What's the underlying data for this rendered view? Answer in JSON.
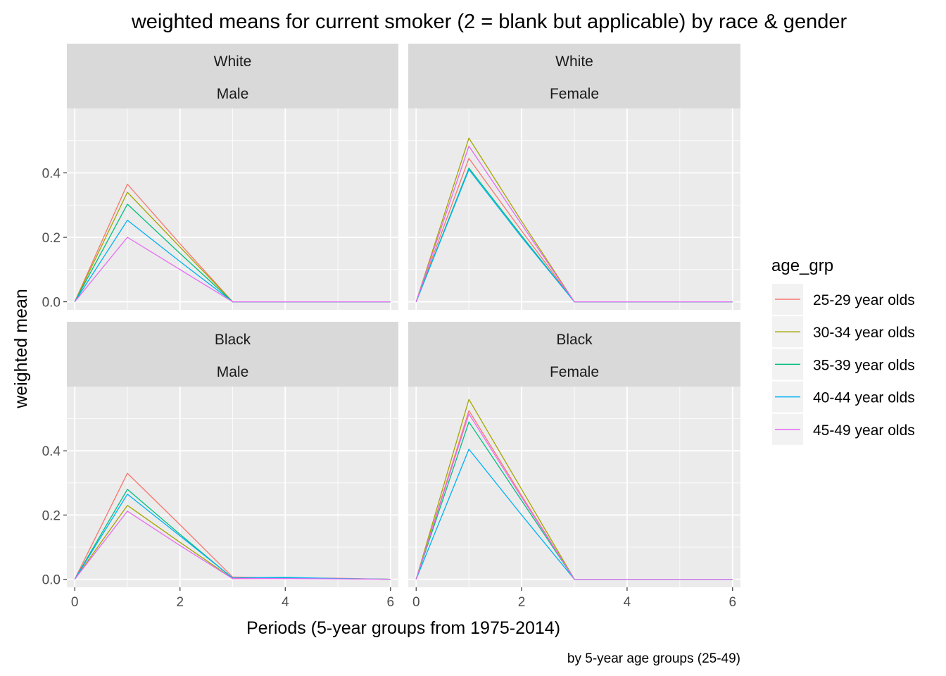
{
  "chart_data": {
    "type": "line",
    "title": "weighted means for current smoker (2 = blank but applicable) by race & gender",
    "xlabel": "Periods (5-year groups from 1975-2014)",
    "ylabel": "weighted mean",
    "caption": "by 5-year age groups (25-49)",
    "xlim": [
      -0.15,
      6.15
    ],
    "ylim": [
      -0.025,
      0.6
    ],
    "xticks": [
      0,
      2,
      4,
      6
    ],
    "yticks": [
      0.0,
      0.2,
      0.4
    ],
    "ytick_labels": [
      "0.0",
      "0.2",
      "0.4"
    ],
    "grid": true,
    "x": [
      0,
      1,
      2,
      3,
      4,
      5,
      6
    ],
    "legend": {
      "title": "age_grp",
      "position": "right"
    },
    "series_meta": [
      {
        "name": "25-29 year olds",
        "color": "#F8766D"
      },
      {
        "name": "30-34 year olds",
        "color": "#A3A500"
      },
      {
        "name": "35-39 year olds",
        "color": "#00BF7D"
      },
      {
        "name": "40-44 year olds",
        "color": "#00B0F6"
      },
      {
        "name": "45-49 year olds",
        "color": "#E76BF3"
      }
    ],
    "panels": [
      {
        "strip": [
          "White",
          "Male"
        ],
        "series": [
          {
            "name": "25-29 year olds",
            "values": [
              0,
              0.365,
              0.18,
              0,
              0,
              0,
              0
            ]
          },
          {
            "name": "30-34 year olds",
            "values": [
              0,
              0.34,
              0.17,
              0,
              0,
              0,
              0
            ]
          },
          {
            "name": "35-39 year olds",
            "values": [
              0,
              0.303,
              0.15,
              0,
              0,
              0,
              0
            ]
          },
          {
            "name": "40-44 year olds",
            "values": [
              0,
              0.253,
              0.125,
              0,
              0,
              0,
              0
            ]
          },
          {
            "name": "45-49 year olds",
            "values": [
              0,
              0.2,
              0.1,
              0,
              0,
              0,
              0
            ]
          }
        ]
      },
      {
        "strip": [
          "White",
          "Female"
        ],
        "series": [
          {
            "name": "25-29 year olds",
            "values": [
              0,
              0.445,
              0.22,
              0,
              0,
              0,
              0
            ]
          },
          {
            "name": "30-34 year olds",
            "values": [
              0,
              0.508,
              0.25,
              0,
              0,
              0,
              0
            ]
          },
          {
            "name": "35-39 year olds",
            "values": [
              0,
              0.415,
              0.205,
              0,
              0,
              0,
              0
            ]
          },
          {
            "name": "40-44 year olds",
            "values": [
              0,
              0.41,
              0.2,
              0,
              0,
              0,
              0
            ]
          },
          {
            "name": "45-49 year olds",
            "values": [
              0,
              0.483,
              0.24,
              0,
              0,
              0,
              0
            ]
          }
        ]
      },
      {
        "strip": [
          "Black",
          "Male"
        ],
        "series": [
          {
            "name": "25-29 year olds",
            "values": [
              0,
              0.33,
              0.17,
              0.007,
              0.004,
              0.003,
              0
            ]
          },
          {
            "name": "30-34 year olds",
            "values": [
              0,
              0.23,
              0.115,
              0.002,
              0.003,
              0.002,
              0
            ]
          },
          {
            "name": "35-39 year olds",
            "values": [
              0,
              0.28,
              0.14,
              0.003,
              0.004,
              0.002,
              0
            ]
          },
          {
            "name": "40-44 year olds",
            "values": [
              0,
              0.265,
              0.135,
              0.004,
              0.006,
              0.002,
              0
            ]
          },
          {
            "name": "45-49 year olds",
            "values": [
              0,
              0.212,
              0.105,
              0.002,
              0.002,
              0.001,
              0
            ]
          }
        ]
      },
      {
        "strip": [
          "Black",
          "Female"
        ],
        "series": [
          {
            "name": "25-29 year olds",
            "values": [
              0,
              0.525,
              0.26,
              0,
              0,
              0,
              0
            ]
          },
          {
            "name": "30-34 year olds",
            "values": [
              0,
              0.56,
              0.28,
              0,
              0,
              0,
              0
            ]
          },
          {
            "name": "35-39 year olds",
            "values": [
              0,
              0.49,
              0.245,
              0,
              0,
              0,
              0
            ]
          },
          {
            "name": "40-44 year olds",
            "values": [
              0,
              0.405,
              0.2,
              0,
              0,
              0,
              0
            ]
          },
          {
            "name": "45-49 year olds",
            "values": [
              0,
              0.515,
              0.255,
              0,
              0,
              0,
              0
            ]
          }
        ]
      }
    ]
  }
}
